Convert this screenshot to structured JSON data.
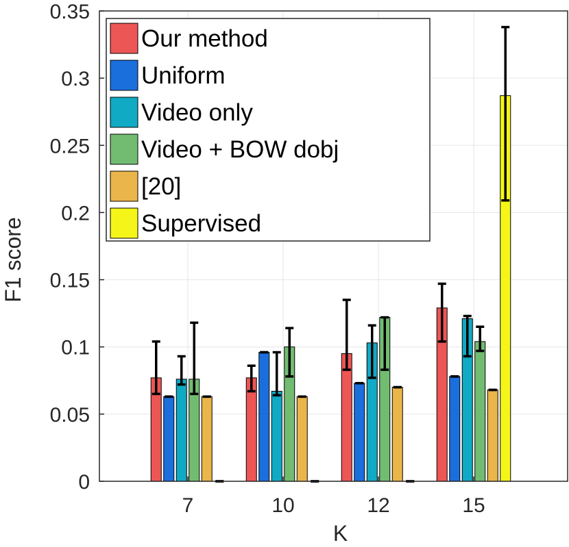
{
  "chart_data": {
    "type": "bar",
    "xlabel": "K",
    "ylabel": "F1 score",
    "categories": [
      "7",
      "10",
      "12",
      "15"
    ],
    "ylim": [
      0,
      0.35
    ],
    "yticks": [
      "0",
      "0.05",
      "0.1",
      "0.15",
      "0.2",
      "0.25",
      "0.3",
      "0.35"
    ],
    "grid": true,
    "legend_position": "top-left",
    "series": [
      {
        "name": "Our method",
        "color": "#ec5655",
        "values": [
          0.077,
          0.077,
          0.095,
          0.129
        ],
        "err_low": [
          0.065,
          0.067,
          0.083,
          0.104
        ],
        "err_high": [
          0.104,
          0.086,
          0.135,
          0.147
        ]
      },
      {
        "name": "Uniform",
        "color": "#1b6fdc",
        "values": [
          0.063,
          0.096,
          0.073,
          0.078
        ],
        "err_low": [
          0.063,
          0.096,
          0.073,
          0.078
        ],
        "err_high": [
          0.063,
          0.096,
          0.073,
          0.078
        ]
      },
      {
        "name": "Video only",
        "color": "#10aac5",
        "values": [
          0.076,
          0.067,
          0.103,
          0.121
        ],
        "err_low": [
          0.072,
          0.064,
          0.077,
          0.093
        ],
        "err_high": [
          0.093,
          0.096,
          0.116,
          0.123
        ]
      },
      {
        "name": "Video + BOW dobj",
        "color": "#72bc72",
        "values": [
          0.076,
          0.1,
          0.122,
          0.104
        ],
        "err_low": [
          0.065,
          0.078,
          0.083,
          0.097
        ],
        "err_high": [
          0.118,
          0.114,
          0.122,
          0.115
        ]
      },
      {
        "name": "[20]",
        "color": "#eab54a",
        "values": [
          0.063,
          0.063,
          0.07,
          0.068
        ],
        "err_low": [
          0.063,
          0.063,
          0.07,
          0.068
        ],
        "err_high": [
          0.063,
          0.063,
          0.07,
          0.068
        ]
      },
      {
        "name": "Supervised",
        "color": "#f5f51a",
        "values": [
          0,
          0,
          0,
          0.287
        ],
        "err_low": [
          0,
          0,
          0,
          0.209
        ],
        "err_high": [
          0,
          0,
          0,
          0.338
        ]
      }
    ]
  }
}
